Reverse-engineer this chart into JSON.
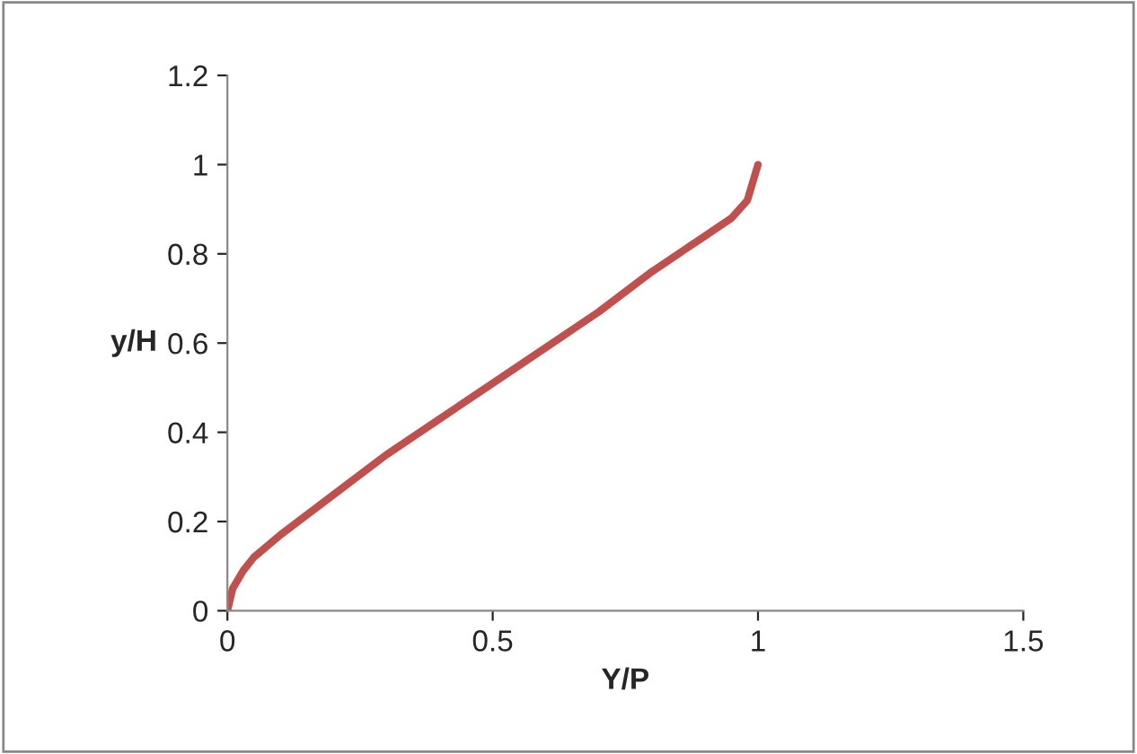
{
  "chart_data": {
    "type": "line",
    "xlabel": "Y/P",
    "ylabel": "y/H",
    "x": [
      0,
      0.01,
      0.03,
      0.05,
      0.1,
      0.2,
      0.3,
      0.4,
      0.5,
      0.6,
      0.7,
      0.8,
      0.9,
      0.95,
      0.98,
      1.0
    ],
    "series": [
      {
        "color": "#c0504d",
        "values": [
          0,
          0.05,
          0.09,
          0.12,
          0.17,
          0.26,
          0.35,
          0.43,
          0.51,
          0.59,
          0.67,
          0.76,
          0.84,
          0.88,
          0.92,
          1.0
        ]
      }
    ],
    "xlim": [
      0,
      1.5
    ],
    "xticks": [
      0,
      0.5,
      1,
      1.5
    ],
    "ylim": [
      0,
      1.2
    ],
    "yticks": [
      0,
      0.2,
      0.4,
      0.6,
      0.8,
      1,
      1.2
    ],
    "grid": false,
    "legend": false,
    "marker": "none",
    "line_style": "solid"
  }
}
